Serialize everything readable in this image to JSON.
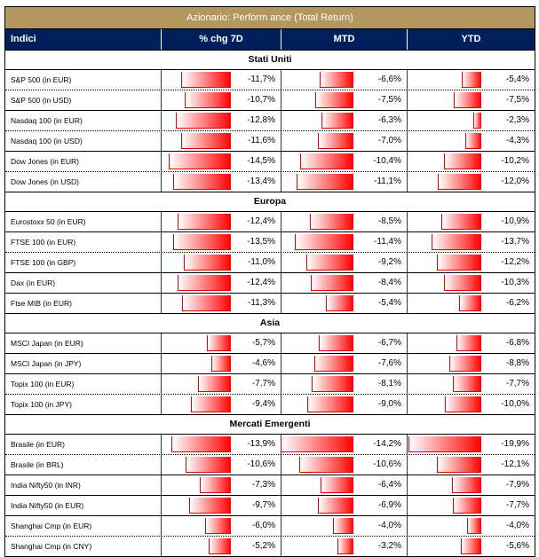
{
  "title": "Azionario: Perform ance (Total Return)",
  "columns": [
    "Indici",
    "% chg 7D",
    "MTD",
    "YTD"
  ],
  "colors": {
    "title_bg": "#b4975e",
    "header_bg": "#00205b",
    "bar": "#ff0000"
  },
  "sections": [
    {
      "name": "Stati Uniti",
      "rows": [
        {
          "label": "S&P 500 (in EUR)",
          "chg7d": "-11,7%",
          "mtd": "-6,6%",
          "ytd": "-5,4%",
          "v": [
            -11.7,
            -6.6,
            -5.4
          ]
        },
        {
          "label": "S&P 500 (in USD)",
          "chg7d": "-10,7%",
          "mtd": "-7,5%",
          "ytd": "-7,5%",
          "v": [
            -10.7,
            -7.5,
            -7.5
          ]
        },
        {
          "label": "Nasdaq 100 (in EUR)",
          "chg7d": "-12,8%",
          "mtd": "-6,3%",
          "ytd": "-2,3%",
          "v": [
            -12.8,
            -6.3,
            -2.3
          ]
        },
        {
          "label": "Nasdaq 100 (in USD)",
          "chg7d": "-11,6%",
          "mtd": "-7,0%",
          "ytd": "-4,3%",
          "v": [
            -11.6,
            -7.0,
            -4.3
          ]
        },
        {
          "label": "Dow Jones (in EUR)",
          "chg7d": "-14,5%",
          "mtd": "-10,4%",
          "ytd": "-10,2%",
          "v": [
            -14.5,
            -10.4,
            -10.2
          ]
        },
        {
          "label": "Dow Jones (in USD)",
          "chg7d": "-13,4%",
          "mtd": "-11,1%",
          "ytd": "-12,0%",
          "v": [
            -13.4,
            -11.1,
            -12.0
          ]
        }
      ]
    },
    {
      "name": "Europa",
      "rows": [
        {
          "label": "Eurostoxx 50 (in EUR)",
          "chg7d": "-12,4%",
          "mtd": "-8,5%",
          "ytd": "-10,9%",
          "v": [
            -12.4,
            -8.5,
            -10.9
          ]
        },
        {
          "label": "FTSE 100 (in EUR)",
          "chg7d": "-13,5%",
          "mtd": "-11,4%",
          "ytd": "-13,7%",
          "v": [
            -13.5,
            -11.4,
            -13.7
          ]
        },
        {
          "label": "FTSE 100 (in GBP)",
          "chg7d": "-11,0%",
          "mtd": "-9,2%",
          "ytd": "-12,2%",
          "v": [
            -11.0,
            -9.2,
            -12.2
          ]
        },
        {
          "label": "Dax (in EUR)",
          "chg7d": "-12,4%",
          "mtd": "-8,4%",
          "ytd": "-10,3%",
          "v": [
            -12.4,
            -8.4,
            -10.3
          ]
        },
        {
          "label": "Ftse MIB (in EUR)",
          "chg7d": "-11,3%",
          "mtd": "-5,4%",
          "ytd": "-6,2%",
          "v": [
            -11.3,
            -5.4,
            -6.2
          ]
        }
      ]
    },
    {
      "name": "Asia",
      "rows": [
        {
          "label": "MSCI Japan (in EUR)",
          "chg7d": "-5,7%",
          "mtd": "-6,7%",
          "ytd": "-6,8%",
          "v": [
            -5.7,
            -6.7,
            -6.8
          ]
        },
        {
          "label": "MSCI Japan (in JPY)",
          "chg7d": "-4,6%",
          "mtd": "-7,6%",
          "ytd": "-8,8%",
          "v": [
            -4.6,
            -7.6,
            -8.8
          ]
        },
        {
          "label": "Topix 100 (in EUR)",
          "chg7d": "-7,7%",
          "mtd": "-8,1%",
          "ytd": "-7,7%",
          "v": [
            -7.7,
            -8.1,
            -7.7
          ]
        },
        {
          "label": "Topix 100 (in JPY)",
          "chg7d": "-9,4%",
          "mtd": "-9,0%",
          "ytd": "-10,0%",
          "v": [
            -9.4,
            -9.0,
            -10.0
          ]
        }
      ]
    },
    {
      "name": "Mercati Emergenti",
      "rows": [
        {
          "label": "Brasile (in EUR)",
          "chg7d": "-13,9%",
          "mtd": "-14,2%",
          "ytd": "-19,9%",
          "v": [
            -13.9,
            -14.2,
            -19.9
          ]
        },
        {
          "label": "Brasile (in BRL)",
          "chg7d": "-10,6%",
          "mtd": "-10,6%",
          "ytd": "-12,1%",
          "v": [
            -10.6,
            -10.6,
            -12.1
          ]
        },
        {
          "label": "India Nifty50 (in INR)",
          "chg7d": "-7,3%",
          "mtd": "-6,4%",
          "ytd": "-7,9%",
          "v": [
            -7.3,
            -6.4,
            -7.9
          ]
        },
        {
          "label": "India Nifty50 (in EUR)",
          "chg7d": "-9,7%",
          "mtd": "-6,9%",
          "ytd": "-7,7%",
          "v": [
            -9.7,
            -6.9,
            -7.7
          ]
        },
        {
          "label": "Shanghai Cmp (in EUR)",
          "chg7d": "-6,0%",
          "mtd": "-4,0%",
          "ytd": "-4,0%",
          "v": [
            -6.0,
            -4.0,
            -4.0
          ]
        },
        {
          "label": "Shanghai Cmp (in CNY)",
          "chg7d": "-5,2%",
          "mtd": "-3,2%",
          "ytd": "-5,6%",
          "v": [
            -5.2,
            -3.2,
            -5.6
          ]
        }
      ]
    }
  ]
}
